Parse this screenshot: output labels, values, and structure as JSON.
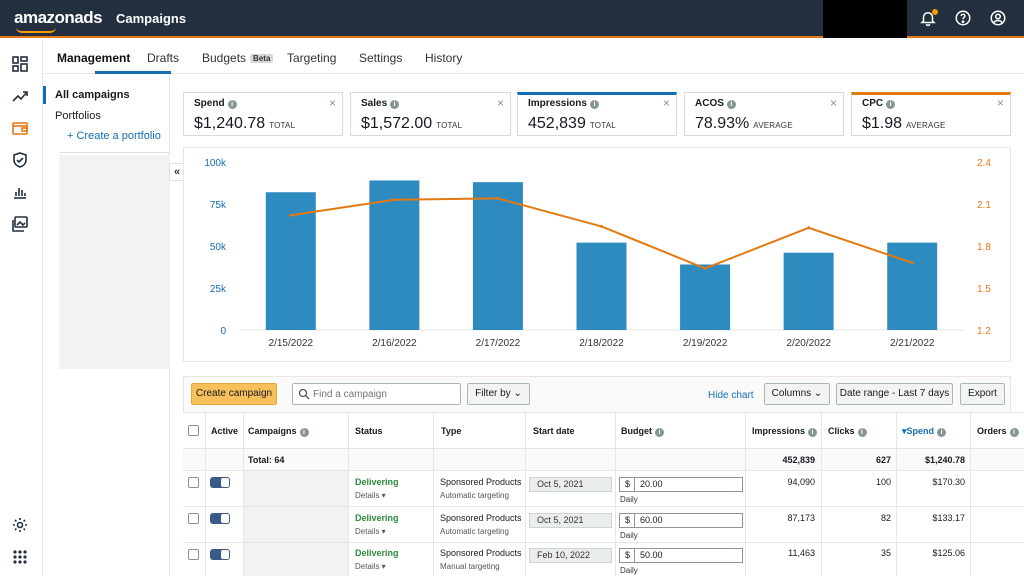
{
  "app": {
    "logo_text": "amazonads",
    "title": "Campaigns"
  },
  "tabs": [
    {
      "label": "Management"
    },
    {
      "label": "Drafts"
    },
    {
      "label": "Budgets",
      "badge": "Beta"
    },
    {
      "label": "Targeting"
    },
    {
      "label": "Settings"
    },
    {
      "label": "History"
    }
  ],
  "side": {
    "all_campaigns": "All campaigns",
    "portfolios": "Portfolios",
    "create_portfolio": "+ Create a portfolio",
    "collapse_glyph": "«"
  },
  "metrics": [
    {
      "label": "Spend",
      "value": "$1,240.78",
      "suffix": "TOTAL"
    },
    {
      "label": "Sales",
      "value": "$1,572.00",
      "suffix": "TOTAL"
    },
    {
      "label": "Impressions",
      "value": "452,839",
      "suffix": "TOTAL"
    },
    {
      "label": "ACOS",
      "value": "78.93%",
      "suffix": "AVERAGE"
    },
    {
      "label": "CPC",
      "value": "$1.98",
      "suffix": "AVERAGE"
    }
  ],
  "chart_data": {
    "type": "bar",
    "categories": [
      "2/15/2022",
      "2/16/2022",
      "2/17/2022",
      "2/18/2022",
      "2/19/2022",
      "2/20/2022",
      "2/21/2022"
    ],
    "series": [
      {
        "name": "Impressions",
        "type": "bar",
        "axis": "left",
        "color": "#2e8bc0",
        "values": [
          82000,
          89000,
          88000,
          52000,
          39000,
          46000,
          52000
        ]
      },
      {
        "name": "CPC",
        "type": "line",
        "axis": "right",
        "color": "#e47911",
        "values": [
          2.02,
          2.13,
          2.14,
          1.94,
          1.64,
          1.93,
          1.68
        ]
      }
    ],
    "y_left": {
      "ticks": [
        "0",
        "25k",
        "50k",
        "75k",
        "100k"
      ],
      "range": [
        0,
        100000
      ]
    },
    "y_right": {
      "ticks": [
        "1.2",
        "1.5",
        "1.8",
        "2.1",
        "2.4"
      ],
      "range": [
        1.2,
        2.4
      ]
    },
    "grid": false
  },
  "toolbar": {
    "create_campaign": "Create campaign",
    "search_placeholder": "Find a campaign",
    "filter_by": "Filter by",
    "hide_chart": "Hide chart",
    "columns": "Columns",
    "date_range": "Date range - Last 7 days",
    "export": "Export"
  },
  "table": {
    "headers": {
      "active": "Active",
      "campaigns": "Campaigns",
      "status": "Status",
      "type": "Type",
      "start_date": "Start date",
      "budget": "Budget",
      "impressions": "Impressions",
      "clicks": "Clicks",
      "spend": "Spend",
      "orders": "Orders"
    },
    "total": {
      "label": "Total: 64",
      "impressions": "452,839",
      "clicks": "627",
      "spend": "$1,240.78"
    },
    "rows": [
      {
        "status": "Delivering",
        "details": "Details ▾",
        "type": "Sponsored Products",
        "targeting": "Automatic targeting",
        "start_date": "Oct 5, 2021",
        "currency": "$",
        "budget": "20.00",
        "budget_period": "Daily",
        "impressions": "94,090",
        "clicks": "100",
        "spend": "$170.30"
      },
      {
        "status": "Delivering",
        "details": "Details ▾",
        "type": "Sponsored Products",
        "targeting": "Automatic targeting",
        "start_date": "Oct 5, 2021",
        "currency": "$",
        "budget": "60.00",
        "budget_period": "Daily",
        "impressions": "87,173",
        "clicks": "82",
        "spend": "$133.17"
      },
      {
        "status": "Delivering",
        "details": "Details ▾",
        "type": "Sponsored Products",
        "targeting": "Manual targeting",
        "start_date": "Feb 10, 2022",
        "currency": "$",
        "budget": "50.00",
        "budget_period": "Daily",
        "impressions": "11,463",
        "clicks": "35",
        "spend": "$125.06"
      }
    ]
  }
}
